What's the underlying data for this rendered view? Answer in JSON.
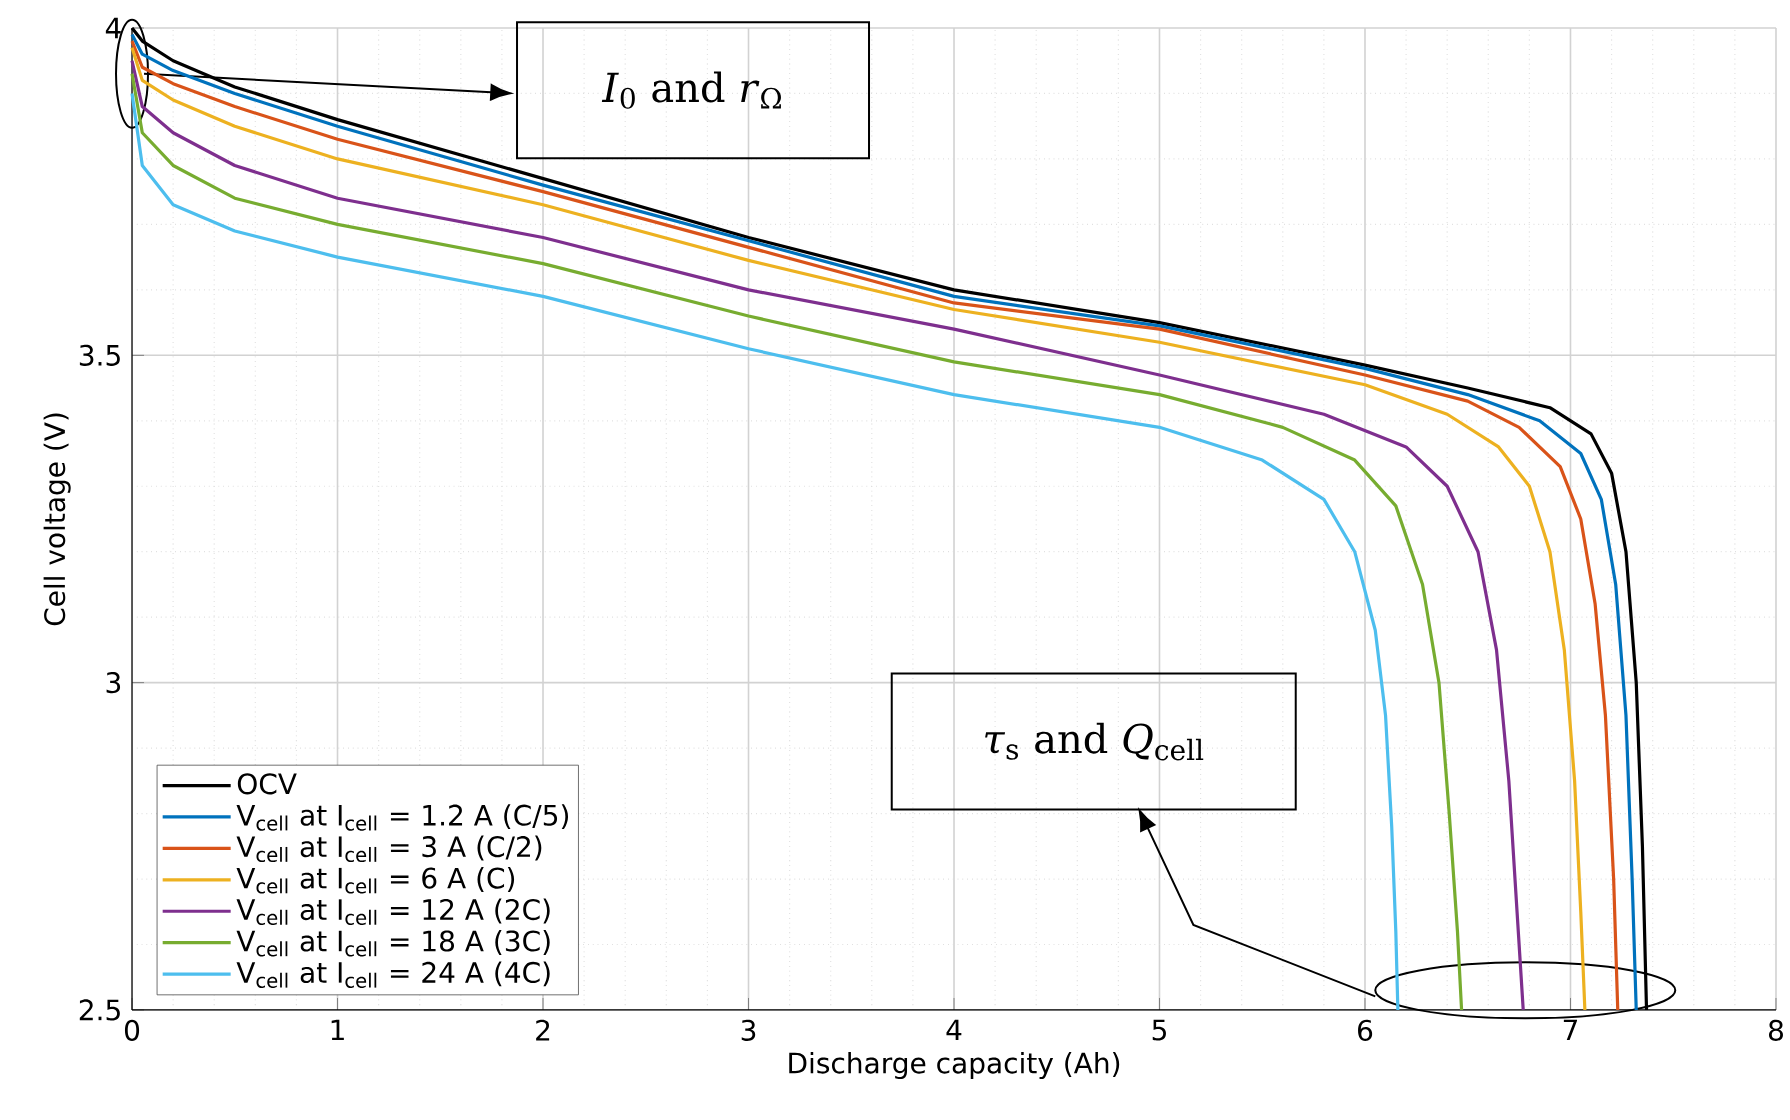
{
  "chart_data": {
    "type": "line",
    "xlabel": "Discharge capacity (Ah)",
    "ylabel": "Cell voltage (V)",
    "xlim": [
      0,
      8
    ],
    "ylim": [
      2.5,
      4
    ],
    "xticks": [
      0,
      1,
      2,
      3,
      4,
      5,
      6,
      7,
      8
    ],
    "yticks": [
      2.5,
      3,
      3.5,
      4
    ],
    "grid": true,
    "legend": "bottom left",
    "line_style": "solid",
    "annotations": [
      "*I*$_{0}$  and  *r*$_{Ω}$",
      "*τ*$_{s}$  and  *Q*$_{cell}$"
    ],
    "series": [
      {
        "name": "OCV",
        "color": "#000000",
        "x": [
          0,
          0.05,
          0.2,
          0.5,
          1,
          2,
          3,
          4,
          5,
          6,
          6.5,
          6.9,
          7.1,
          7.2,
          7.27,
          7.32,
          7.35,
          7.37
        ],
        "values": [
          4.0,
          3.98,
          3.95,
          3.91,
          3.86,
          3.77,
          3.68,
          3.6,
          3.55,
          3.485,
          3.45,
          3.42,
          3.38,
          3.32,
          3.2,
          3.0,
          2.75,
          2.5
        ]
      },
      {
        "name": "V$_{cell}$ at I$_{cell}$ = 1.2 A (C/5)",
        "color": "#0072bd",
        "x": [
          0,
          0.05,
          0.2,
          0.5,
          1,
          2,
          3,
          4,
          5,
          6,
          6.5,
          6.85,
          7.05,
          7.15,
          7.22,
          7.27,
          7.3,
          7.32
        ],
        "values": [
          3.99,
          3.96,
          3.935,
          3.9,
          3.85,
          3.76,
          3.675,
          3.59,
          3.545,
          3.48,
          3.44,
          3.4,
          3.35,
          3.28,
          3.15,
          2.95,
          2.7,
          2.5
        ]
      },
      {
        "name": "V$_{cell}$ at I$_{cell}$ = 3 A (C/2)",
        "color": "#d95319",
        "x": [
          0,
          0.05,
          0.2,
          0.5,
          1,
          2,
          3,
          4,
          5,
          6,
          6.5,
          6.75,
          6.95,
          7.05,
          7.12,
          7.17,
          7.21,
          7.23
        ],
        "values": [
          3.98,
          3.94,
          3.915,
          3.88,
          3.83,
          3.75,
          3.665,
          3.58,
          3.54,
          3.47,
          3.43,
          3.39,
          3.33,
          3.25,
          3.12,
          2.95,
          2.7,
          2.5
        ]
      },
      {
        "name": "V$_{cell}$ at I$_{cell}$ = 6 A (C)",
        "color": "#edb120",
        "x": [
          0,
          0.05,
          0.2,
          0.5,
          1,
          2,
          3,
          4,
          5,
          6,
          6.4,
          6.65,
          6.8,
          6.9,
          6.97,
          7.02,
          7.05,
          7.07
        ],
        "values": [
          3.97,
          3.92,
          3.89,
          3.85,
          3.8,
          3.73,
          3.645,
          3.57,
          3.52,
          3.455,
          3.41,
          3.36,
          3.3,
          3.2,
          3.05,
          2.85,
          2.65,
          2.5
        ]
      },
      {
        "name": "V$_{cell}$ at I$_{cell}$ = 12 A (2C)",
        "color": "#7e2f8e",
        "x": [
          0,
          0.05,
          0.2,
          0.5,
          1,
          2,
          3,
          4,
          5,
          5.8,
          6.2,
          6.4,
          6.55,
          6.64,
          6.7,
          6.74,
          6.77
        ],
        "values": [
          3.95,
          3.88,
          3.84,
          3.79,
          3.74,
          3.68,
          3.6,
          3.54,
          3.47,
          3.41,
          3.36,
          3.3,
          3.2,
          3.05,
          2.85,
          2.65,
          2.5
        ]
      },
      {
        "name": "V$_{cell}$ at I$_{cell}$ = 18 A (3C)",
        "color": "#77ac30",
        "x": [
          0,
          0.05,
          0.2,
          0.5,
          1,
          2,
          3,
          4,
          5,
          5.6,
          5.95,
          6.15,
          6.28,
          6.36,
          6.41,
          6.45,
          6.47
        ],
        "values": [
          3.93,
          3.84,
          3.79,
          3.74,
          3.7,
          3.64,
          3.56,
          3.49,
          3.44,
          3.39,
          3.34,
          3.27,
          3.15,
          3.0,
          2.8,
          2.62,
          2.5
        ]
      },
      {
        "name": "V$_{cell}$ at I$_{cell}$ = 24 A (4C)",
        "color": "#4dbeee",
        "x": [
          0,
          0.05,
          0.2,
          0.5,
          1,
          2,
          3,
          4,
          5,
          5.5,
          5.8,
          5.95,
          6.05,
          6.1,
          6.13,
          6.15,
          6.16
        ],
        "values": [
          3.9,
          3.79,
          3.73,
          3.69,
          3.65,
          3.59,
          3.51,
          3.44,
          3.39,
          3.34,
          3.28,
          3.2,
          3.08,
          2.95,
          2.78,
          2.62,
          2.5
        ]
      }
    ]
  }
}
